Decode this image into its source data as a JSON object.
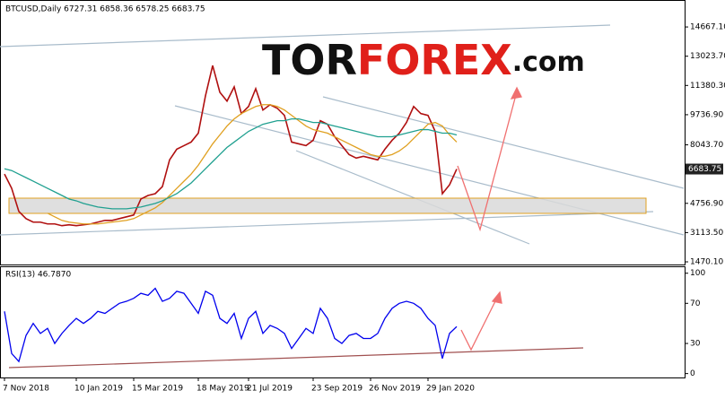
{
  "chart_data": [
    {
      "type": "line",
      "header": "BTCUSD,Daily  6727.31 6858.36 6578.25 6683.75",
      "watermark": [
        "TOR",
        "FOREX",
        ".com"
      ],
      "last_price": "6683.75",
      "categories": [
        "7 Nov 2018",
        null,
        null,
        null,
        null,
        null,
        null,
        null,
        null,
        null,
        "10 Jan 2019",
        null,
        null,
        null,
        null,
        null,
        null,
        null,
        "15 Mar 2019",
        null,
        null,
        null,
        null,
        null,
        null,
        null,
        null,
        "18 May 2019",
        null,
        null,
        null,
        null,
        null,
        null,
        "21 Jul 2019",
        null,
        null,
        null,
        null,
        null,
        null,
        null,
        null,
        "23 Sep 2019",
        null,
        null,
        null,
        null,
        null,
        null,
        null,
        "26 Nov 2019",
        null,
        null,
        null,
        null,
        null,
        null,
        null,
        "29 Jan 2020",
        null,
        null,
        null,
        null
      ],
      "series": [
        {
          "color": "#b01010",
          "values": [
            6400,
            5600,
            4300,
            3900,
            3700,
            3700,
            3600,
            3600,
            3500,
            3550,
            3500,
            3550,
            3600,
            3700,
            3800,
            3800,
            3900,
            4000,
            4100,
            5000,
            5200,
            5300,
            5700,
            7200,
            7800,
            8000,
            8200,
            8700,
            10800,
            12500,
            11000,
            10500,
            11300,
            9800,
            10200,
            11200,
            10000,
            10300,
            10100,
            9700,
            8200,
            8100,
            8000,
            8300,
            9400,
            9200,
            8500,
            8000,
            7500,
            7300,
            7400,
            7300,
            7200,
            7800,
            8300,
            8700,
            9300,
            10200,
            9800,
            9700,
            8800,
            5300,
            5800,
            6683.75
          ]
        },
        {
          "color": "#e0a020",
          "values": [
            null,
            null,
            null,
            null,
            null,
            null,
            4200,
            4000,
            3800,
            3700,
            3650,
            3600,
            3600,
            3600,
            3650,
            3700,
            3750,
            3800,
            3900,
            4100,
            4300,
            4500,
            4800,
            5200,
            5600,
            6000,
            6400,
            6900,
            7500,
            8100,
            8600,
            9100,
            9500,
            9800,
            10000,
            10200,
            10300,
            10300,
            10200,
            10000,
            9700,
            9400,
            9100,
            8900,
            8800,
            8700,
            8500,
            8300,
            8100,
            7900,
            7700,
            7500,
            7400,
            7400,
            7500,
            7700,
            8000,
            8400,
            8800,
            9200,
            9300,
            9100,
            8600,
            8200
          ]
        },
        {
          "color": "#20a090",
          "values": [
            6700,
            6600,
            6400,
            6200,
            6000,
            5800,
            5600,
            5400,
            5200,
            5000,
            4900,
            4750,
            4650,
            4550,
            4500,
            4450,
            4450,
            4450,
            4500,
            4550,
            4650,
            4750,
            4900,
            5100,
            5300,
            5600,
            5900,
            6300,
            6700,
            7100,
            7500,
            7900,
            8200,
            8500,
            8800,
            9000,
            9200,
            9300,
            9400,
            9400,
            9500,
            9500,
            9400,
            9300,
            9300,
            9200,
            9100,
            9000,
            8900,
            8800,
            8700,
            8600,
            8500,
            8500,
            8500,
            8600,
            8700,
            8800,
            8900,
            8900,
            8800,
            8700,
            8700,
            8600
          ]
        }
      ],
      "ylim": [
        1320,
        15930
      ],
      "yticks": [
        {
          "value": 14667.1,
          "label": "14667.10"
        },
        {
          "value": 13023.7,
          "label": "13023.70"
        },
        {
          "value": 11380.3,
          "label": "11380.30"
        },
        {
          "value": 9736.9,
          "label": "9736.90"
        },
        {
          "value": 8043.7,
          "label": "8043.70"
        },
        {
          "value": 4756.9,
          "label": "4756.90"
        },
        {
          "value": 3113.5,
          "label": "3113.50"
        },
        {
          "value": 1470.1,
          "label": "1470.10"
        }
      ]
    },
    {
      "type": "line",
      "header": "RSI(13) 46.7870",
      "series": [
        {
          "color": "#0000ee",
          "values": [
            62,
            20,
            12,
            38,
            50,
            40,
            45,
            30,
            40,
            48,
            55,
            50,
            55,
            62,
            60,
            65,
            70,
            72,
            75,
            80,
            78,
            85,
            72,
            75,
            82,
            80,
            70,
            60,
            82,
            78,
            55,
            50,
            60,
            35,
            55,
            62,
            40,
            48,
            45,
            40,
            25,
            35,
            45,
            40,
            65,
            55,
            35,
            30,
            38,
            40,
            35,
            35,
            40,
            55,
            65,
            70,
            72,
            70,
            65,
            55,
            48,
            15,
            40,
            46.787
          ]
        }
      ],
      "ylim": [
        -3,
        106
      ],
      "yticks": [
        100,
        70,
        30,
        0
      ]
    }
  ]
}
